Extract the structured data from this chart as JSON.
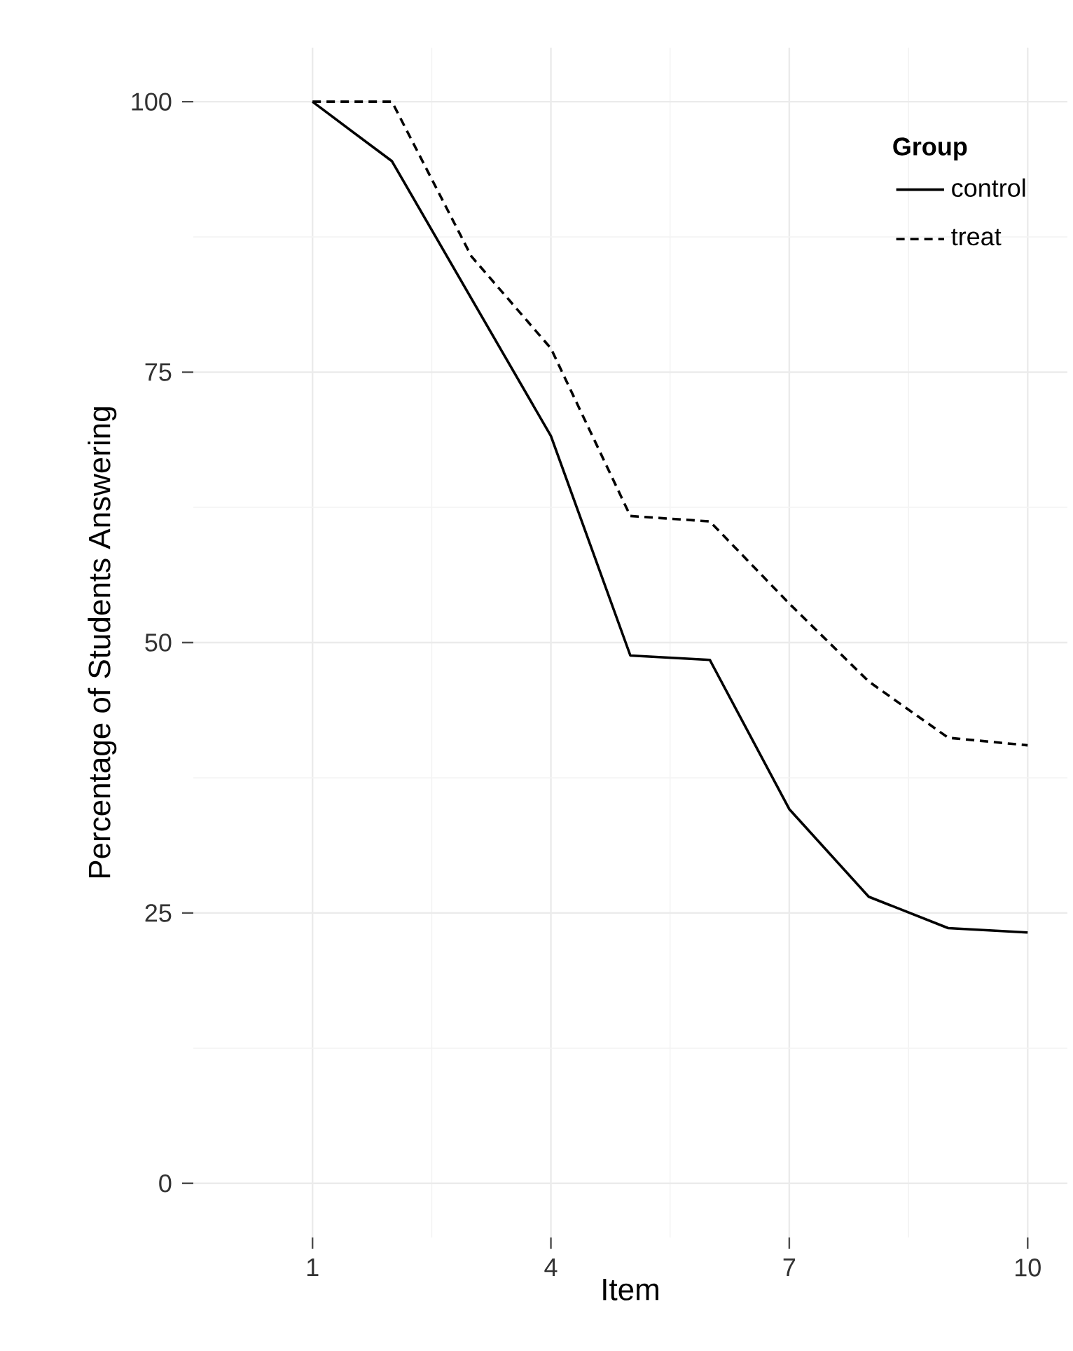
{
  "chart_data": {
    "type": "line",
    "xlabel": "Item",
    "ylabel": "Percentage of Students Answering",
    "legend_title": "Group",
    "x": [
      1,
      2,
      3,
      4,
      5,
      6,
      7,
      8,
      9,
      10
    ],
    "series": [
      {
        "name": "control",
        "color": "#000000",
        "line_style": "solid",
        "values": [
          100,
          94.5,
          81.8,
          69.1,
          48.8,
          48.4,
          34.6,
          26.5,
          23.6,
          23.2
        ]
      },
      {
        "name": "treat",
        "color": "#000000",
        "line_style": "dashed",
        "values": [
          100,
          100,
          85.7,
          77.2,
          61.7,
          61.2,
          53.6,
          46.4,
          41.2,
          40.5
        ]
      }
    ],
    "xlim": [
      -0.5,
      10.5
    ],
    "ylim": [
      -5,
      105
    ],
    "xticks": [
      1,
      4,
      7,
      10
    ],
    "yticks": [
      0,
      25,
      50,
      75,
      100
    ],
    "grid": true,
    "legend": "top right",
    "marker": "none"
  }
}
